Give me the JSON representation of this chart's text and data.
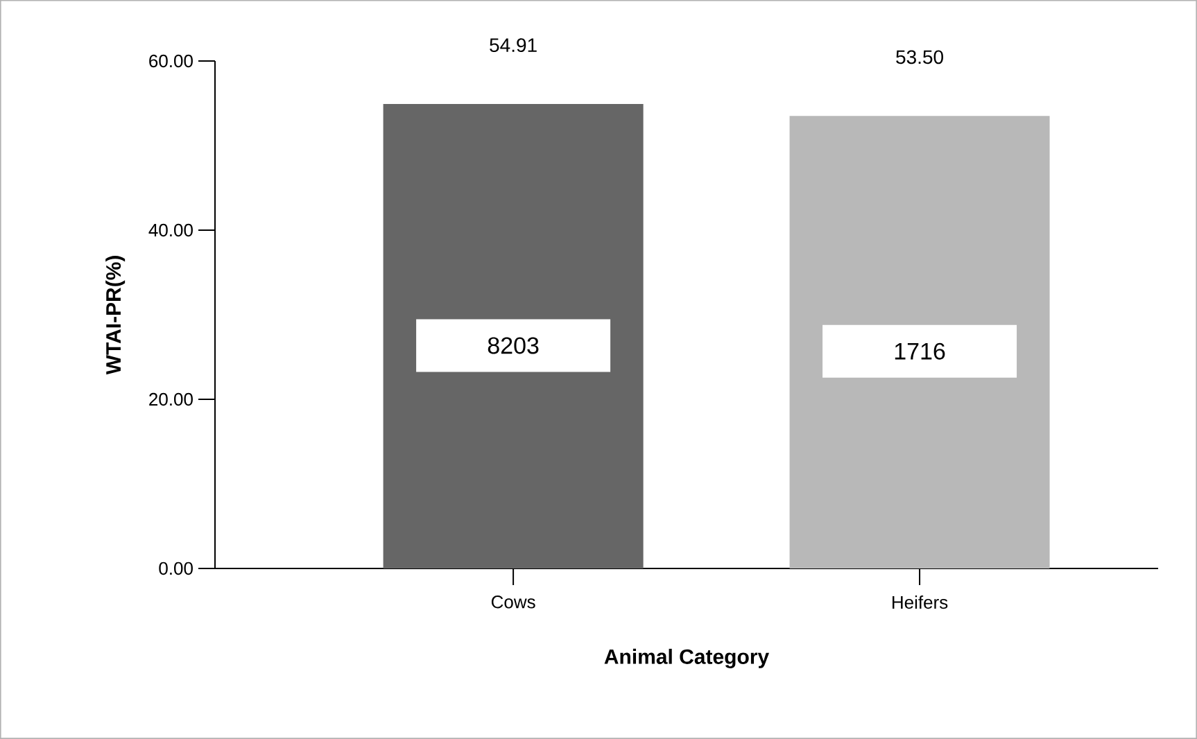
{
  "chart_data": {
    "type": "bar",
    "xlabel": "Animal Category",
    "ylabel": "WTAI-PR(%)",
    "categories": [
      "Cows",
      "Heifers"
    ],
    "values": [
      54.91,
      53.5
    ],
    "colors": [
      "#666666",
      "#b8b8b8"
    ],
    "value_labels": [
      "54.91",
      "53.50"
    ],
    "ylim": [
      0,
      60
    ],
    "yticks": [
      {
        "value": 0,
        "label": "0.00"
      },
      {
        "value": 20,
        "label": "20.00"
      },
      {
        "value": 40,
        "label": "40.00"
      },
      {
        "value": 60,
        "label": "60.00"
      }
    ],
    "annotations": [
      "8203",
      "1716"
    ]
  }
}
